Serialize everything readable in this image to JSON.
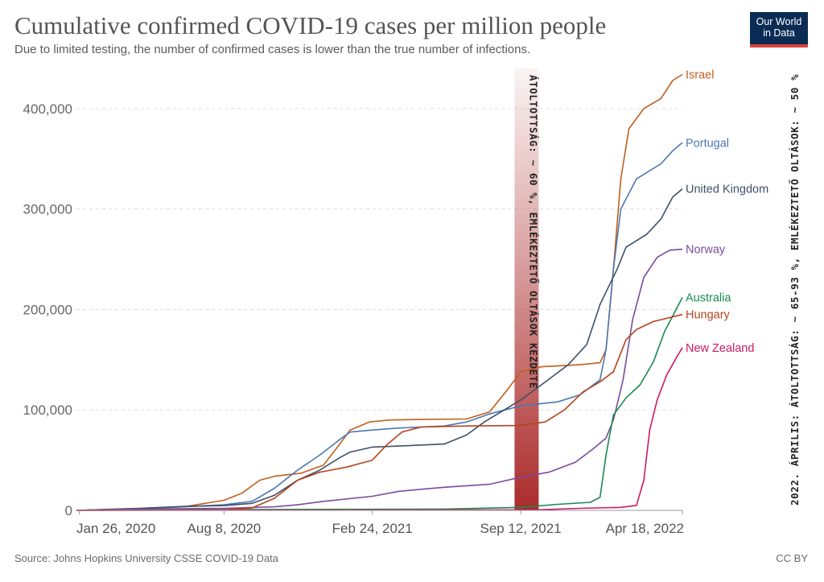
{
  "header": {
    "title": "Cumulative confirmed COVID-19 cases per million people",
    "subtitle": "Due to limited testing, the number of confirmed cases is lower than the true number of infections."
  },
  "logo": {
    "line1": "Our World",
    "line2": "in Data",
    "bg_color": "#0a2c54",
    "accent_color": "#d9413a"
  },
  "footer": {
    "source": "Source: Johns Hopkins University CSSE COVID-19 Data",
    "license": "CC BY"
  },
  "annotations": {
    "band_text": "ÁTOLTOTTSÁG: ~ 60 %, EMLÉKEZTETŐ OLTÁSOK KEZDETE",
    "band_date": "2021-09-20",
    "band_color": "#a6201f",
    "side_text": "2022. ÁPRILIS: ÁTOLTOTTSÁG: ~ 65-93 %, EMLÉKEZTETŐ OLTÁSOK: ~ 50 %"
  },
  "chart_data": {
    "type": "line",
    "title": "Cumulative confirmed COVID-19 cases per million people",
    "x_type": "date",
    "xlim": [
      "2020-01-22",
      "2022-04-18"
    ],
    "ylim": [
      0,
      440000
    ],
    "yticks": [
      0,
      100000,
      200000,
      300000,
      400000
    ],
    "ytick_labels": [
      "0",
      "100,000",
      "200,000",
      "300,000",
      "400,000"
    ],
    "xticks": [
      "2020-01-26",
      "2020-08-08",
      "2021-02-24",
      "2021-09-12",
      "2022-04-18"
    ],
    "xtick_labels": [
      "Jan 26, 2020",
      "Aug 8, 2020",
      "Feb 24, 2021",
      "Sep 12, 2021",
      "Apr 18, 2022"
    ],
    "grid": "horizontal dashed",
    "legend": "labels at line ends",
    "series": [
      {
        "name": "Israel",
        "color": "#c15f1d",
        "points": [
          [
            "2020-01-22",
            0
          ],
          [
            "2020-04-15",
            1500
          ],
          [
            "2020-06-15",
            3500
          ],
          [
            "2020-08-08",
            10000
          ],
          [
            "2020-09-01",
            17000
          ],
          [
            "2020-09-25",
            30000
          ],
          [
            "2020-10-15",
            34000
          ],
          [
            "2020-11-20",
            37000
          ],
          [
            "2020-12-20",
            45000
          ],
          [
            "2021-01-10",
            65000
          ],
          [
            "2021-01-25",
            80000
          ],
          [
            "2021-02-20",
            88000
          ],
          [
            "2021-03-20",
            90000
          ],
          [
            "2021-05-01",
            90500
          ],
          [
            "2021-07-01",
            91000
          ],
          [
            "2021-08-01",
            98000
          ],
          [
            "2021-08-25",
            120000
          ],
          [
            "2021-09-12",
            138000
          ],
          [
            "2021-10-10",
            143000
          ],
          [
            "2021-12-01",
            145000
          ],
          [
            "2021-12-28",
            147000
          ],
          [
            "2022-01-05",
            160000
          ],
          [
            "2022-01-15",
            240000
          ],
          [
            "2022-01-25",
            330000
          ],
          [
            "2022-02-05",
            380000
          ],
          [
            "2022-02-25",
            400000
          ],
          [
            "2022-03-20",
            410000
          ],
          [
            "2022-04-05",
            428000
          ],
          [
            "2022-04-18",
            434000
          ]
        ]
      },
      {
        "name": "Portugal",
        "color": "#4b78b2",
        "points": [
          [
            "2020-01-22",
            0
          ],
          [
            "2020-04-15",
            1800
          ],
          [
            "2020-06-15",
            3500
          ],
          [
            "2020-08-08",
            5500
          ],
          [
            "2020-09-15",
            9000
          ],
          [
            "2020-10-15",
            22000
          ],
          [
            "2020-11-15",
            40000
          ],
          [
            "2020-12-15",
            55000
          ],
          [
            "2021-01-10",
            70000
          ],
          [
            "2021-01-25",
            78000
          ],
          [
            "2021-02-24",
            80000
          ],
          [
            "2021-04-01",
            82000
          ],
          [
            "2021-06-01",
            84000
          ],
          [
            "2021-07-01",
            88000
          ],
          [
            "2021-08-01",
            96000
          ],
          [
            "2021-09-12",
            104000
          ],
          [
            "2021-11-01",
            108000
          ],
          [
            "2021-12-01",
            115000
          ],
          [
            "2021-12-28",
            130000
          ],
          [
            "2022-01-05",
            160000
          ],
          [
            "2022-01-15",
            240000
          ],
          [
            "2022-01-25",
            300000
          ],
          [
            "2022-02-15",
            330000
          ],
          [
            "2022-03-20",
            345000
          ],
          [
            "2022-04-05",
            358000
          ],
          [
            "2022-04-18",
            366000
          ]
        ]
      },
      {
        "name": "United Kingdom",
        "color": "#3e5168",
        "points": [
          [
            "2020-01-22",
            0
          ],
          [
            "2020-04-15",
            2000
          ],
          [
            "2020-06-15",
            4000
          ],
          [
            "2020-08-08",
            4700
          ],
          [
            "2020-09-15",
            7000
          ],
          [
            "2020-10-15",
            15000
          ],
          [
            "2020-11-15",
            30000
          ],
          [
            "2020-12-15",
            40000
          ],
          [
            "2021-01-10",
            52000
          ],
          [
            "2021-01-25",
            58000
          ],
          [
            "2021-02-24",
            63000
          ],
          [
            "2021-04-01",
            64000
          ],
          [
            "2021-06-01",
            66000
          ],
          [
            "2021-07-01",
            75000
          ],
          [
            "2021-07-25",
            88000
          ],
          [
            "2021-09-12",
            110000
          ],
          [
            "2021-10-10",
            125000
          ],
          [
            "2021-11-15",
            145000
          ],
          [
            "2021-12-10",
            165000
          ],
          [
            "2021-12-28",
            205000
          ],
          [
            "2022-01-10",
            225000
          ],
          [
            "2022-01-20",
            240000
          ],
          [
            "2022-02-01",
            262000
          ],
          [
            "2022-03-01",
            275000
          ],
          [
            "2022-03-20",
            290000
          ],
          [
            "2022-04-05",
            312000
          ],
          [
            "2022-04-18",
            320000
          ]
        ]
      },
      {
        "name": "Norway",
        "color": "#7b4a9e",
        "points": [
          [
            "2020-01-22",
            0
          ],
          [
            "2020-04-15",
            1200
          ],
          [
            "2020-08-08",
            2000
          ],
          [
            "2020-10-15",
            3500
          ],
          [
            "2020-11-15",
            5500
          ],
          [
            "2020-12-20",
            9000
          ],
          [
            "2021-02-24",
            14000
          ],
          [
            "2021-04-01",
            19000
          ],
          [
            "2021-06-01",
            23000
          ],
          [
            "2021-08-01",
            26000
          ],
          [
            "2021-09-12",
            33000
          ],
          [
            "2021-10-20",
            38000
          ],
          [
            "2021-11-25",
            48000
          ],
          [
            "2021-12-20",
            62000
          ],
          [
            "2022-01-05",
            72000
          ],
          [
            "2022-01-15",
            90000
          ],
          [
            "2022-01-28",
            130000
          ],
          [
            "2022-02-10",
            190000
          ],
          [
            "2022-02-25",
            232000
          ],
          [
            "2022-03-15",
            252000
          ],
          [
            "2022-04-01",
            259000
          ],
          [
            "2022-04-18",
            260000
          ]
        ]
      },
      {
        "name": "Australia",
        "color": "#1a8a4e",
        "points": [
          [
            "2020-01-22",
            0
          ],
          [
            "2020-08-08",
            800
          ],
          [
            "2021-06-01",
            1300
          ],
          [
            "2021-09-12",
            3000
          ],
          [
            "2021-11-01",
            6000
          ],
          [
            "2021-12-15",
            8000
          ],
          [
            "2021-12-28",
            13000
          ],
          [
            "2022-01-05",
            55000
          ],
          [
            "2022-01-15",
            95000
          ],
          [
            "2022-02-01",
            112000
          ],
          [
            "2022-02-20",
            125000
          ],
          [
            "2022-03-10",
            148000
          ],
          [
            "2022-03-25",
            178000
          ],
          [
            "2022-04-18",
            212000
          ]
        ]
      },
      {
        "name": "Hungary",
        "color": "#b5441b",
        "points": [
          [
            "2020-01-22",
            0
          ],
          [
            "2020-08-08",
            500
          ],
          [
            "2020-09-15",
            2500
          ],
          [
            "2020-10-15",
            12000
          ],
          [
            "2020-11-15",
            30000
          ],
          [
            "2020-12-15",
            38000
          ],
          [
            "2021-01-20",
            43000
          ],
          [
            "2021-02-24",
            50000
          ],
          [
            "2021-03-15",
            65000
          ],
          [
            "2021-04-05",
            78000
          ],
          [
            "2021-05-01",
            83000
          ],
          [
            "2021-07-01",
            84000
          ],
          [
            "2021-09-12",
            84500
          ],
          [
            "2021-10-15",
            88000
          ],
          [
            "2021-11-10",
            100000
          ],
          [
            "2021-12-05",
            118000
          ],
          [
            "2021-12-28",
            128000
          ],
          [
            "2022-01-15",
            138000
          ],
          [
            "2022-02-01",
            170000
          ],
          [
            "2022-02-15",
            180000
          ],
          [
            "2022-03-10",
            188000
          ],
          [
            "2022-04-18",
            195000
          ]
        ]
      },
      {
        "name": "New Zealand",
        "color": "#cc1964",
        "points": [
          [
            "2020-01-22",
            0
          ],
          [
            "2021-10-01",
            500
          ],
          [
            "2021-12-01",
            2000
          ],
          [
            "2022-01-25",
            3000
          ],
          [
            "2022-02-15",
            5000
          ],
          [
            "2022-02-25",
            30000
          ],
          [
            "2022-03-05",
            80000
          ],
          [
            "2022-03-15",
            110000
          ],
          [
            "2022-03-28",
            135000
          ],
          [
            "2022-04-10",
            152000
          ],
          [
            "2022-04-18",
            162000
          ]
        ]
      }
    ]
  }
}
